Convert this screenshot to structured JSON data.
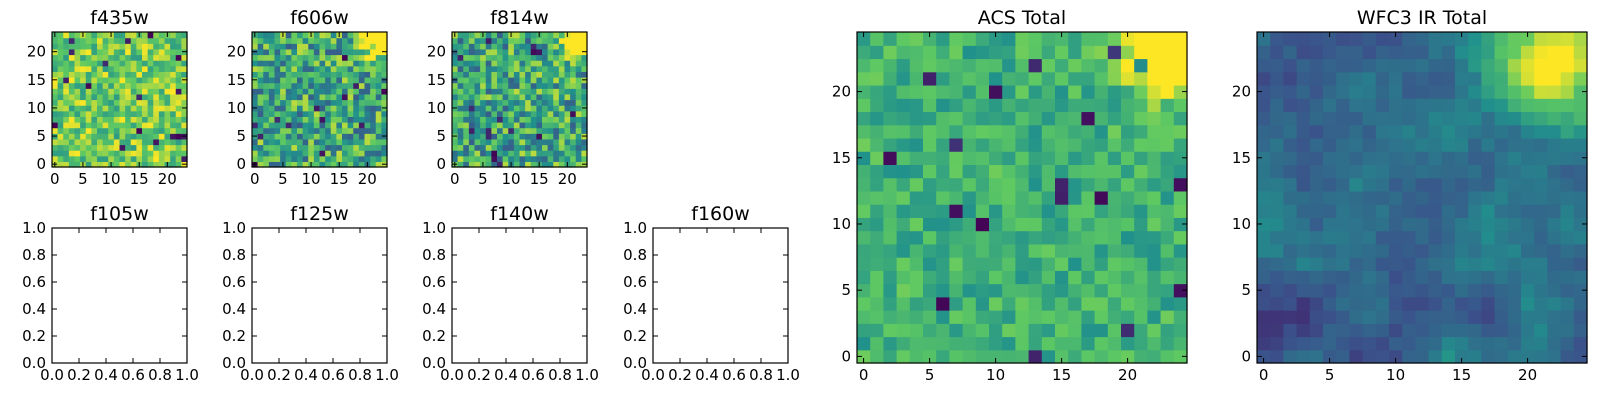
{
  "chart_data": [
    {
      "type": "heatmap",
      "title": "f435w",
      "shape": [
        24,
        24
      ],
      "xticks": [
        "0",
        "5",
        "10",
        "15",
        "20"
      ],
      "yticks": [
        "0",
        "5",
        "10",
        "15",
        "20"
      ],
      "colormap": "viridis",
      "appearance": "dense random noise, mostly yellow-green and green, scattered dark pixels"
    },
    {
      "type": "heatmap",
      "title": "f606w",
      "shape": [
        24,
        24
      ],
      "xticks": [
        "0",
        "5",
        "10",
        "15",
        "20"
      ],
      "yticks": [
        "0",
        "5",
        "10",
        "15",
        "20"
      ],
      "colormap": "viridis",
      "appearance": "random noise, bright yellow patch at upper-right corner"
    },
    {
      "type": "heatmap",
      "title": "f814w",
      "shape": [
        24,
        24
      ],
      "xticks": [
        "0",
        "5",
        "10",
        "15",
        "20"
      ],
      "yticks": [
        "0",
        "5",
        "10",
        "15",
        "20"
      ],
      "colormap": "viridis",
      "appearance": "random noise, bright yellow patch at upper-right corner"
    },
    {
      "type": "empty",
      "title": "f105w",
      "xlim": [
        0,
        1
      ],
      "ylim": [
        0,
        1
      ],
      "xticks": [
        "0.0",
        "0.2",
        "0.4",
        "0.6",
        "0.8",
        "1.0"
      ],
      "yticks": [
        "0.0",
        "0.2",
        "0.4",
        "0.6",
        "0.8",
        "1.0"
      ]
    },
    {
      "type": "empty",
      "title": "f125w",
      "xlim": [
        0,
        1
      ],
      "ylim": [
        0,
        1
      ],
      "xticks": [
        "0.0",
        "0.2",
        "0.4",
        "0.6",
        "0.8",
        "1.0"
      ],
      "yticks": [
        "0.0",
        "0.2",
        "0.4",
        "0.6",
        "0.8",
        "1.0"
      ]
    },
    {
      "type": "empty",
      "title": "f140w",
      "xlim": [
        0,
        1
      ],
      "ylim": [
        0,
        1
      ],
      "xticks": [
        "0.0",
        "0.2",
        "0.4",
        "0.6",
        "0.8",
        "1.0"
      ],
      "yticks": [
        "0.0",
        "0.2",
        "0.4",
        "0.6",
        "0.8",
        "1.0"
      ]
    },
    {
      "type": "empty",
      "title": "f160w",
      "xlim": [
        0,
        1
      ],
      "ylim": [
        0,
        1
      ],
      "xticks": [
        "0.0",
        "0.2",
        "0.4",
        "0.6",
        "0.8",
        "1.0"
      ],
      "yticks": [
        "0.0",
        "0.2",
        "0.4",
        "0.6",
        "0.8",
        "1.0"
      ]
    },
    {
      "type": "heatmap",
      "title": "ACS Total",
      "shape": [
        25,
        25
      ],
      "xticks": [
        "0",
        "5",
        "10",
        "15",
        "20"
      ],
      "yticks": [
        "0",
        "5",
        "10",
        "15",
        "20"
      ],
      "colormap": "viridis",
      "appearance": "green noise field with bright yellow block at upper-right corner and isolated dark pixels"
    },
    {
      "type": "heatmap",
      "title": "WFC3 IR Total",
      "shape": [
        25,
        25
      ],
      "xticks": [
        "0",
        "5",
        "10",
        "15",
        "20"
      ],
      "yticks": [
        "0",
        "5",
        "10",
        "15",
        "20"
      ],
      "colormap": "viridis",
      "appearance": "smooth blue-teal field, yellow-green bright region at upper-right, dark purple clumps lower-left"
    }
  ],
  "colors": {
    "viridis": [
      "#440154",
      "#3b528b",
      "#21918c",
      "#5ec962",
      "#fde725"
    ]
  }
}
